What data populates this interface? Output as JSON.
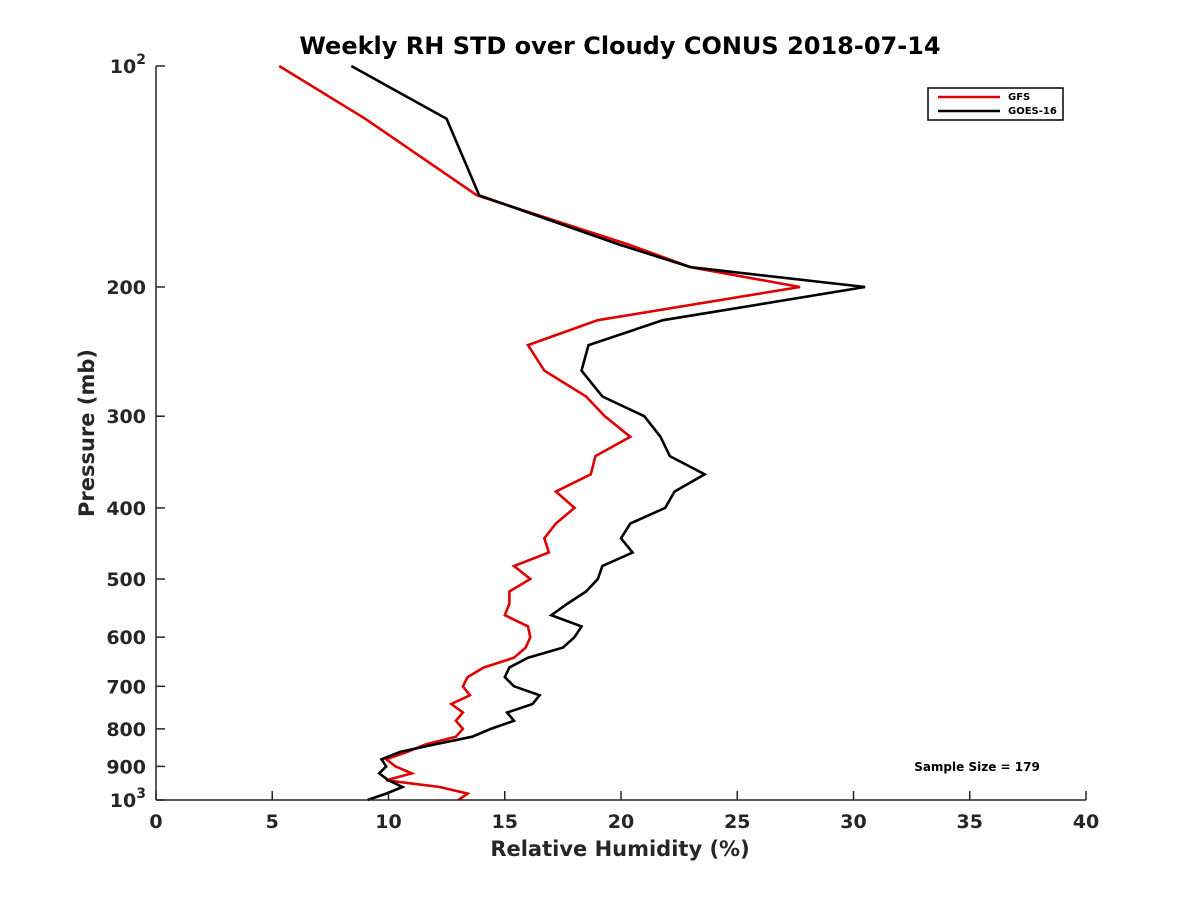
{
  "chart_data": {
    "type": "line",
    "title": "Weekly RH STD over Cloudy CONUS 2018-07-14",
    "xlabel": "Relative Humidity (%)",
    "ylabel": "Pressure (mb)",
    "xlim": [
      0,
      40
    ],
    "ylim": [
      100,
      1000
    ],
    "y_scale": "log",
    "y_reversed": true,
    "x_ticks": [
      0,
      5,
      10,
      15,
      20,
      25,
      30,
      35,
      40
    ],
    "x_tick_labels": [
      "0",
      "5",
      "10",
      "15",
      "20",
      "25",
      "30",
      "35",
      "40"
    ],
    "y_ticks": [
      100,
      200,
      300,
      400,
      500,
      600,
      700,
      800,
      900,
      1000
    ],
    "y_tick_labels": [
      {
        "base": "10",
        "exp": "2"
      },
      {
        "base": "200",
        "exp": ""
      },
      {
        "base": "300",
        "exp": ""
      },
      {
        "base": "400",
        "exp": ""
      },
      {
        "base": "500",
        "exp": ""
      },
      {
        "base": "600",
        "exp": ""
      },
      {
        "base": "700",
        "exp": ""
      },
      {
        "base": "800",
        "exp": ""
      },
      {
        "base": "900",
        "exp": ""
      },
      {
        "base": "10",
        "exp": "3"
      }
    ],
    "grid": false,
    "legend_position": "top-right",
    "annotation": "Sample Size = 179",
    "series": [
      {
        "name": "GFS",
        "color": "#e00000",
        "points": [
          [
            5.3,
            100
          ],
          [
            9.0,
            118
          ],
          [
            13.8,
            150
          ],
          [
            20.3,
            175
          ],
          [
            23.0,
            188
          ],
          [
            27.7,
            200
          ],
          [
            19.0,
            222
          ],
          [
            16.0,
            240
          ],
          [
            16.7,
            260
          ],
          [
            18.5,
            282
          ],
          [
            19.3,
            300
          ],
          [
            20.4,
            320
          ],
          [
            18.9,
            340
          ],
          [
            18.7,
            360
          ],
          [
            17.2,
            380
          ],
          [
            18.0,
            400
          ],
          [
            17.2,
            420
          ],
          [
            16.7,
            440
          ],
          [
            16.9,
            460
          ],
          [
            15.4,
            480
          ],
          [
            16.1,
            500
          ],
          [
            15.2,
            520
          ],
          [
            15.2,
            540
          ],
          [
            15.0,
            560
          ],
          [
            16.0,
            580
          ],
          [
            16.1,
            600
          ],
          [
            15.9,
            620
          ],
          [
            15.4,
            640
          ],
          [
            14.1,
            660
          ],
          [
            13.4,
            680
          ],
          [
            13.2,
            700
          ],
          [
            13.5,
            720
          ],
          [
            12.7,
            740
          ],
          [
            13.2,
            760
          ],
          [
            12.9,
            780
          ],
          [
            13.2,
            800
          ],
          [
            12.9,
            820
          ],
          [
            11.6,
            840
          ],
          [
            10.8,
            860
          ],
          [
            9.9,
            880
          ],
          [
            10.3,
            900
          ],
          [
            11.0,
            920
          ],
          [
            9.9,
            940
          ],
          [
            12.2,
            960
          ],
          [
            13.4,
            980
          ],
          [
            13.0,
            1000
          ]
        ]
      },
      {
        "name": "GOES-16",
        "color": "#000000",
        "points": [
          [
            8.4,
            100
          ],
          [
            12.5,
            118
          ],
          [
            13.9,
            150
          ],
          [
            19.9,
            175
          ],
          [
            23.0,
            188
          ],
          [
            30.5,
            200
          ],
          [
            21.8,
            222
          ],
          [
            18.6,
            240
          ],
          [
            18.3,
            260
          ],
          [
            19.2,
            282
          ],
          [
            21.0,
            300
          ],
          [
            21.7,
            320
          ],
          [
            22.1,
            340
          ],
          [
            23.6,
            360
          ],
          [
            22.3,
            380
          ],
          [
            21.9,
            400
          ],
          [
            20.4,
            420
          ],
          [
            20.0,
            440
          ],
          [
            20.5,
            460
          ],
          [
            19.2,
            480
          ],
          [
            19.0,
            500
          ],
          [
            18.5,
            520
          ],
          [
            17.7,
            540
          ],
          [
            17.0,
            560
          ],
          [
            18.3,
            580
          ],
          [
            18.0,
            600
          ],
          [
            17.5,
            620
          ],
          [
            16.0,
            640
          ],
          [
            15.2,
            660
          ],
          [
            15.0,
            680
          ],
          [
            15.4,
            700
          ],
          [
            16.5,
            720
          ],
          [
            16.2,
            740
          ],
          [
            15.1,
            760
          ],
          [
            15.4,
            780
          ],
          [
            14.4,
            800
          ],
          [
            13.6,
            820
          ],
          [
            12.0,
            840
          ],
          [
            10.5,
            860
          ],
          [
            9.7,
            880
          ],
          [
            9.9,
            900
          ],
          [
            9.6,
            920
          ],
          [
            10.0,
            940
          ],
          [
            10.6,
            960
          ],
          [
            9.9,
            980
          ],
          [
            9.1,
            1000
          ]
        ]
      }
    ]
  }
}
